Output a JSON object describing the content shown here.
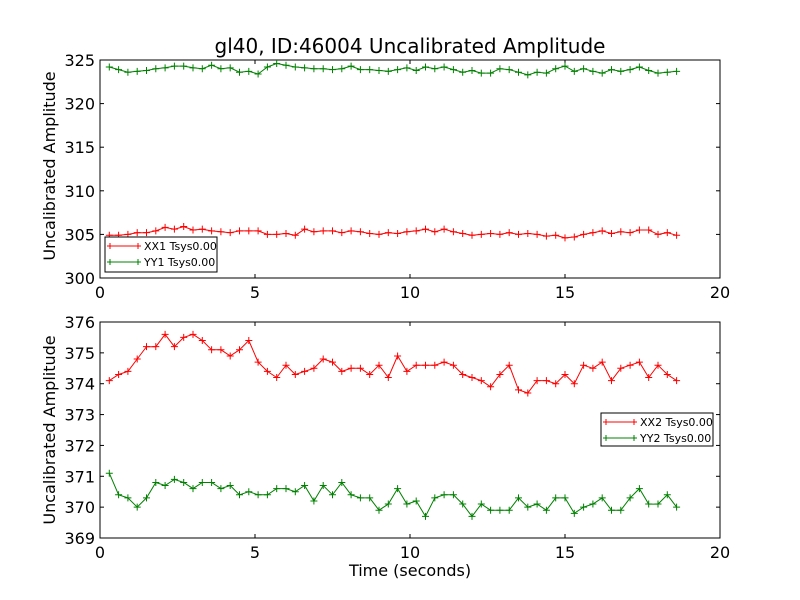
{
  "chart_data": [
    {
      "type": "line",
      "title": "gl40, ID:46004 Uncalibrated Amplitude",
      "xlabel": "",
      "ylabel": "Uncalibrated Amplitude",
      "xlim": [
        0,
        20
      ],
      "ylim": [
        300,
        325
      ],
      "xticks": [
        0,
        5,
        10,
        15,
        20
      ],
      "yticks": [
        300,
        305,
        310,
        315,
        320,
        325
      ],
      "legend_position": "lower-left",
      "x": [
        0.3,
        0.6,
        0.9,
        1.2,
        1.5,
        1.8,
        2.1,
        2.4,
        2.7,
        3.0,
        3.3,
        3.6,
        3.9,
        4.2,
        4.5,
        4.8,
        5.1,
        5.4,
        5.7,
        6.0,
        6.3,
        6.6,
        6.9,
        7.2,
        7.5,
        7.8,
        8.1,
        8.4,
        8.7,
        9.0,
        9.3,
        9.6,
        9.9,
        10.2,
        10.5,
        10.8,
        11.1,
        11.4,
        11.7,
        12.0,
        12.3,
        12.6,
        12.9,
        13.2,
        13.5,
        13.8,
        14.1,
        14.4,
        14.7,
        15.0,
        15.3,
        15.6,
        15.9,
        16.2,
        16.5,
        16.8,
        17.1,
        17.4,
        17.7,
        18.0,
        18.3,
        18.6
      ],
      "series": [
        {
          "name": "XX1 Tsys0.00",
          "color": "#ff0000",
          "values": [
            304.9,
            304.9,
            305.0,
            305.2,
            305.2,
            305.4,
            305.8,
            305.6,
            305.9,
            305.5,
            305.6,
            305.4,
            305.3,
            305.2,
            305.4,
            305.4,
            305.4,
            305.0,
            305.0,
            305.1,
            304.9,
            305.6,
            305.3,
            305.4,
            305.4,
            305.2,
            305.4,
            305.3,
            305.1,
            305.0,
            305.2,
            305.1,
            305.3,
            305.4,
            305.6,
            305.3,
            305.6,
            305.3,
            305.1,
            304.9,
            305.0,
            305.1,
            305.0,
            305.2,
            305.0,
            305.1,
            305.0,
            304.8,
            304.9,
            304.6,
            304.7,
            305.0,
            305.2,
            305.4,
            305.1,
            305.3,
            305.2,
            305.5,
            305.5,
            305.0,
            305.2,
            304.9
          ]
        },
        {
          "name": "YY1 Tsys0.00",
          "color": "#008000",
          "values": [
            324.2,
            323.9,
            323.6,
            323.7,
            323.8,
            324.0,
            324.1,
            324.3,
            324.3,
            324.1,
            324.0,
            324.4,
            324.0,
            324.1,
            323.6,
            323.7,
            323.4,
            324.2,
            324.6,
            324.4,
            324.2,
            324.1,
            324.0,
            324.0,
            323.9,
            324.0,
            324.3,
            323.9,
            323.9,
            323.8,
            323.7,
            323.9,
            324.1,
            323.8,
            324.2,
            324.0,
            324.2,
            323.9,
            323.6,
            323.8,
            323.5,
            323.5,
            324.0,
            323.9,
            323.6,
            323.3,
            323.6,
            323.5,
            324.0,
            324.3,
            323.7,
            324.0,
            323.7,
            323.5,
            323.9,
            323.7,
            323.9,
            324.2,
            323.8,
            323.5,
            323.6,
            323.7
          ]
        }
      ]
    },
    {
      "type": "line",
      "title": "",
      "xlabel": "Time (seconds)",
      "ylabel": "Uncalibrated Amplitude",
      "xlim": [
        0,
        20
      ],
      "ylim": [
        369,
        376
      ],
      "xticks": [
        0,
        5,
        10,
        15,
        20
      ],
      "yticks": [
        369,
        370,
        371,
        372,
        373,
        374,
        375,
        376
      ],
      "legend_position": "center-right",
      "x": [
        0.3,
        0.6,
        0.9,
        1.2,
        1.5,
        1.8,
        2.1,
        2.4,
        2.7,
        3.0,
        3.3,
        3.6,
        3.9,
        4.2,
        4.5,
        4.8,
        5.1,
        5.4,
        5.7,
        6.0,
        6.3,
        6.6,
        6.9,
        7.2,
        7.5,
        7.8,
        8.1,
        8.4,
        8.7,
        9.0,
        9.3,
        9.6,
        9.9,
        10.2,
        10.5,
        10.8,
        11.1,
        11.4,
        11.7,
        12.0,
        12.3,
        12.6,
        12.9,
        13.2,
        13.5,
        13.8,
        14.1,
        14.4,
        14.7,
        15.0,
        15.3,
        15.6,
        15.9,
        16.2,
        16.5,
        16.8,
        17.1,
        17.4,
        17.7,
        18.0,
        18.3,
        18.6
      ],
      "series": [
        {
          "name": "XX2 Tsys0.00",
          "color": "#ff0000",
          "values": [
            374.1,
            374.3,
            374.4,
            374.8,
            375.2,
            375.2,
            375.6,
            375.2,
            375.5,
            375.6,
            375.4,
            375.1,
            375.1,
            374.9,
            375.1,
            375.4,
            374.7,
            374.4,
            374.2,
            374.6,
            374.3,
            374.4,
            374.5,
            374.8,
            374.7,
            374.4,
            374.5,
            374.5,
            374.3,
            374.6,
            374.2,
            374.9,
            374.4,
            374.6,
            374.6,
            374.6,
            374.7,
            374.6,
            374.3,
            374.2,
            374.1,
            373.9,
            374.3,
            374.6,
            373.8,
            373.7,
            374.1,
            374.1,
            374.0,
            374.3,
            374.0,
            374.6,
            374.5,
            374.7,
            374.1,
            374.5,
            374.6,
            374.7,
            374.2,
            374.6,
            374.3,
            374.1
          ]
        },
        {
          "name": "YY2 Tsys0.00",
          "color": "#008000",
          "values": [
            371.1,
            370.4,
            370.3,
            370.0,
            370.3,
            370.8,
            370.7,
            370.9,
            370.8,
            370.6,
            370.8,
            370.8,
            370.6,
            370.7,
            370.4,
            370.5,
            370.4,
            370.4,
            370.6,
            370.6,
            370.5,
            370.7,
            370.2,
            370.7,
            370.4,
            370.8,
            370.4,
            370.3,
            370.3,
            369.9,
            370.1,
            370.6,
            370.1,
            370.2,
            369.7,
            370.3,
            370.4,
            370.4,
            370.1,
            369.7,
            370.1,
            369.9,
            369.9,
            369.9,
            370.3,
            370.0,
            370.1,
            369.9,
            370.3,
            370.3,
            369.8,
            370.0,
            370.1,
            370.3,
            369.9,
            369.9,
            370.3,
            370.6,
            370.1,
            370.1,
            370.4,
            370.0
          ]
        }
      ]
    }
  ]
}
